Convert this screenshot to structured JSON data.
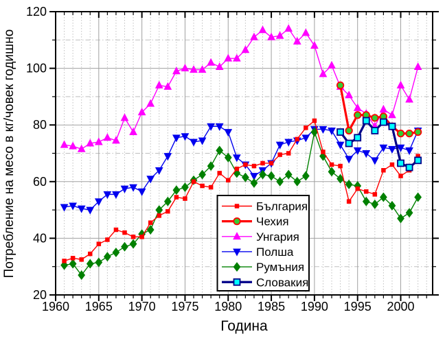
{
  "figure": {
    "background": "#ffffff"
  },
  "chart_data": {
    "type": "line",
    "title": "",
    "xlabel": "Година",
    "ylabel": "Потребление на месо в кг/човек годишно",
    "xlim": [
      1960,
      2003.7
    ],
    "ylim": [
      20,
      120
    ],
    "x_major_ticks": [
      1960,
      1965,
      1970,
      1975,
      1980,
      1985,
      1990,
      1995,
      2000
    ],
    "x_minor_step": 1,
    "y_major_ticks": [
      20,
      40,
      60,
      80,
      100,
      120
    ],
    "y_minor_ticks": [
      30,
      50,
      70,
      90,
      110
    ],
    "grid": {
      "major_color": "#a0a0a0",
      "minor_color": "#bfbfbf",
      "major_on": true,
      "minor_on": true
    },
    "legend_position": "inside, lower middle of plot",
    "series": [
      {
        "id": "bulgaria",
        "name": "България",
        "color": "#ff0000",
        "line_width": 1.4,
        "marker": "square",
        "marker_size": 5.5,
        "marker_fill": "#ff0000",
        "marker_edge": "#ff0000",
        "x": [
          1961,
          1962,
          1963,
          1964,
          1965,
          1966,
          1967,
          1968,
          1969,
          1970,
          1971,
          1972,
          1973,
          1974,
          1975,
          1976,
          1977,
          1978,
          1979,
          1980,
          1981,
          1982,
          1983,
          1984,
          1985,
          1986,
          1987,
          1988,
          1989,
          1990,
          1991,
          1992,
          1993,
          1994,
          1995,
          1996,
          1997,
          1998,
          1999,
          2000,
          2001,
          2002
        ],
        "values": [
          32,
          33,
          32.5,
          34.5,
          38,
          39.5,
          43,
          42,
          40.5,
          40.5,
          45.5,
          48,
          49.5,
          54.5,
          54,
          60,
          58.5,
          58,
          63,
          60.5,
          64.5,
          66,
          65.5,
          66.5,
          66.5,
          69.5,
          70,
          75,
          79,
          81.5,
          70.5,
          66,
          65.5,
          53,
          57.5,
          56.5,
          55.5,
          64,
          66,
          62,
          64,
          69
        ]
      },
      {
        "id": "czechia",
        "name": "Чехия",
        "color": "#ff0000",
        "line_width": 3.2,
        "marker": "circle",
        "marker_size": 9.5,
        "marker_fill": "#33cc33",
        "marker_edge": "#ff0000",
        "x": [
          1993,
          1994,
          1995,
          1996,
          1997,
          1998,
          1999,
          2000,
          2001,
          2002
        ],
        "values": [
          94,
          78,
          83.5,
          83.5,
          82.5,
          83,
          79.5,
          77,
          77,
          77.5
        ]
      },
      {
        "id": "hungary",
        "name": "Унгария",
        "color": "#ff00ff",
        "line_width": 1.4,
        "marker": "triangle-up",
        "marker_size": 9,
        "marker_fill": "#ff00ff",
        "marker_edge": "#ff00ff",
        "x": [
          1961,
          1962,
          1963,
          1964,
          1965,
          1966,
          1967,
          1968,
          1969,
          1970,
          1971,
          1972,
          1973,
          1974,
          1975,
          1976,
          1977,
          1978,
          1979,
          1980,
          1981,
          1982,
          1983,
          1984,
          1985,
          1986,
          1987,
          1988,
          1989,
          1990,
          1991,
          1992,
          1993,
          1994,
          1995,
          1996,
          1997,
          1998,
          1999,
          2000,
          2001,
          2002
        ],
        "values": [
          73,
          72.5,
          71.5,
          73.5,
          74,
          75.5,
          74.5,
          82.5,
          77.5,
          84.5,
          87.5,
          94,
          93.5,
          99,
          100,
          99.5,
          99.5,
          102,
          100.5,
          103.5,
          103.5,
          106.5,
          111,
          113.5,
          111,
          111.5,
          114,
          109.5,
          112.5,
          108,
          98,
          101,
          93.5,
          90.5,
          86,
          84,
          79.5,
          85.5,
          83.5,
          94,
          89,
          100.5
        ]
      },
      {
        "id": "poland",
        "name": "Полша",
        "color": "#0000ee",
        "line_width": 1.4,
        "marker": "triangle-down",
        "marker_size": 9,
        "marker_fill": "#0000ee",
        "marker_edge": "#0000ee",
        "x": [
          1961,
          1962,
          1963,
          1964,
          1965,
          1966,
          1967,
          1968,
          1969,
          1970,
          1971,
          1972,
          1973,
          1974,
          1975,
          1976,
          1977,
          1978,
          1979,
          1980,
          1981,
          1982,
          1983,
          1984,
          1985,
          1986,
          1987,
          1988,
          1989,
          1990,
          1991,
          1992,
          1993,
          1994,
          1995,
          1996,
          1997,
          1998,
          1999,
          2000,
          2001,
          2002
        ],
        "values": [
          51,
          51.5,
          50.5,
          50,
          53,
          55.5,
          55.5,
          57.5,
          58,
          56.5,
          61,
          64,
          69,
          75.5,
          76,
          74,
          74.5,
          79.5,
          79.5,
          77.5,
          68.5,
          66,
          62,
          64,
          66.5,
          73,
          74,
          74.5,
          75.5,
          78.5,
          78.5,
          78,
          73,
          68,
          71,
          70,
          67.5,
          72,
          71.5,
          72,
          71,
          78
        ]
      },
      {
        "id": "romania",
        "name": "Румъния",
        "color": "#008000",
        "line_width": 1.4,
        "marker": "diamond",
        "marker_size": 9.5,
        "marker_fill": "#008000",
        "marker_edge": "#008000",
        "x": [
          1961,
          1962,
          1963,
          1964,
          1965,
          1966,
          1967,
          1968,
          1969,
          1970,
          1971,
          1972,
          1973,
          1974,
          1975,
          1976,
          1977,
          1978,
          1979,
          1980,
          1981,
          1982,
          1983,
          1984,
          1985,
          1986,
          1987,
          1988,
          1989,
          1990,
          1991,
          1992,
          1993,
          1994,
          1995,
          1996,
          1997,
          1998,
          1999,
          2000,
          2001,
          2002
        ],
        "values": [
          30.5,
          31,
          27,
          31,
          31.5,
          33.5,
          35,
          37,
          38,
          41.5,
          43,
          50,
          53,
          57,
          58,
          60.5,
          62.5,
          65.5,
          71,
          68.5,
          63,
          61.5,
          59.5,
          62.5,
          62,
          60,
          62.5,
          60,
          62,
          77.5,
          69,
          63.5,
          61,
          59,
          58.5,
          53,
          52,
          54.5,
          51.5,
          47,
          49,
          54.5
        ]
      },
      {
        "id": "slovakia",
        "name": "Словакия",
        "color": "#000088",
        "line_width": 3.2,
        "marker": "square",
        "marker_size": 9,
        "marker_fill": "#00ffff",
        "marker_edge": "#000088",
        "x": [
          1993,
          1994,
          1995,
          1996,
          1997,
          1998,
          1999,
          2000,
          2001,
          2002
        ],
        "values": [
          77.5,
          73.5,
          75.5,
          81.5,
          78,
          81,
          79.5,
          66.5,
          65,
          67.5
        ]
      }
    ]
  }
}
